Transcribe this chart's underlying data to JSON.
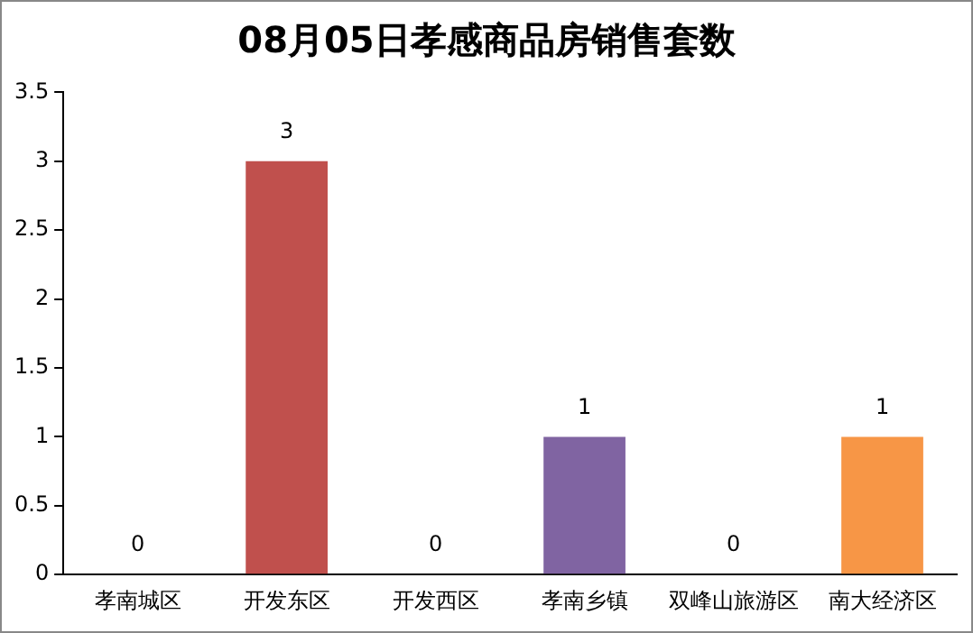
{
  "chart_data": {
    "type": "bar",
    "title": "08月05日孝感商品房销售套数",
    "categories": [
      "孝南城区",
      "开发东区",
      "开发西区",
      "孝南乡镇",
      "双峰山旅游区",
      "南大经济区"
    ],
    "values": [
      0,
      3,
      0,
      1,
      0,
      1
    ],
    "colors": [
      "#4f81bd",
      "#c0504d",
      "#9bbb59",
      "#8064a2",
      "#4bacc6",
      "#f79646"
    ],
    "ylim": [
      0,
      3.5
    ],
    "yticks": [
      0,
      0.5,
      1,
      1.5,
      2,
      2.5,
      3,
      3.5
    ],
    "grid": false,
    "legend": false,
    "data_labels": true
  }
}
